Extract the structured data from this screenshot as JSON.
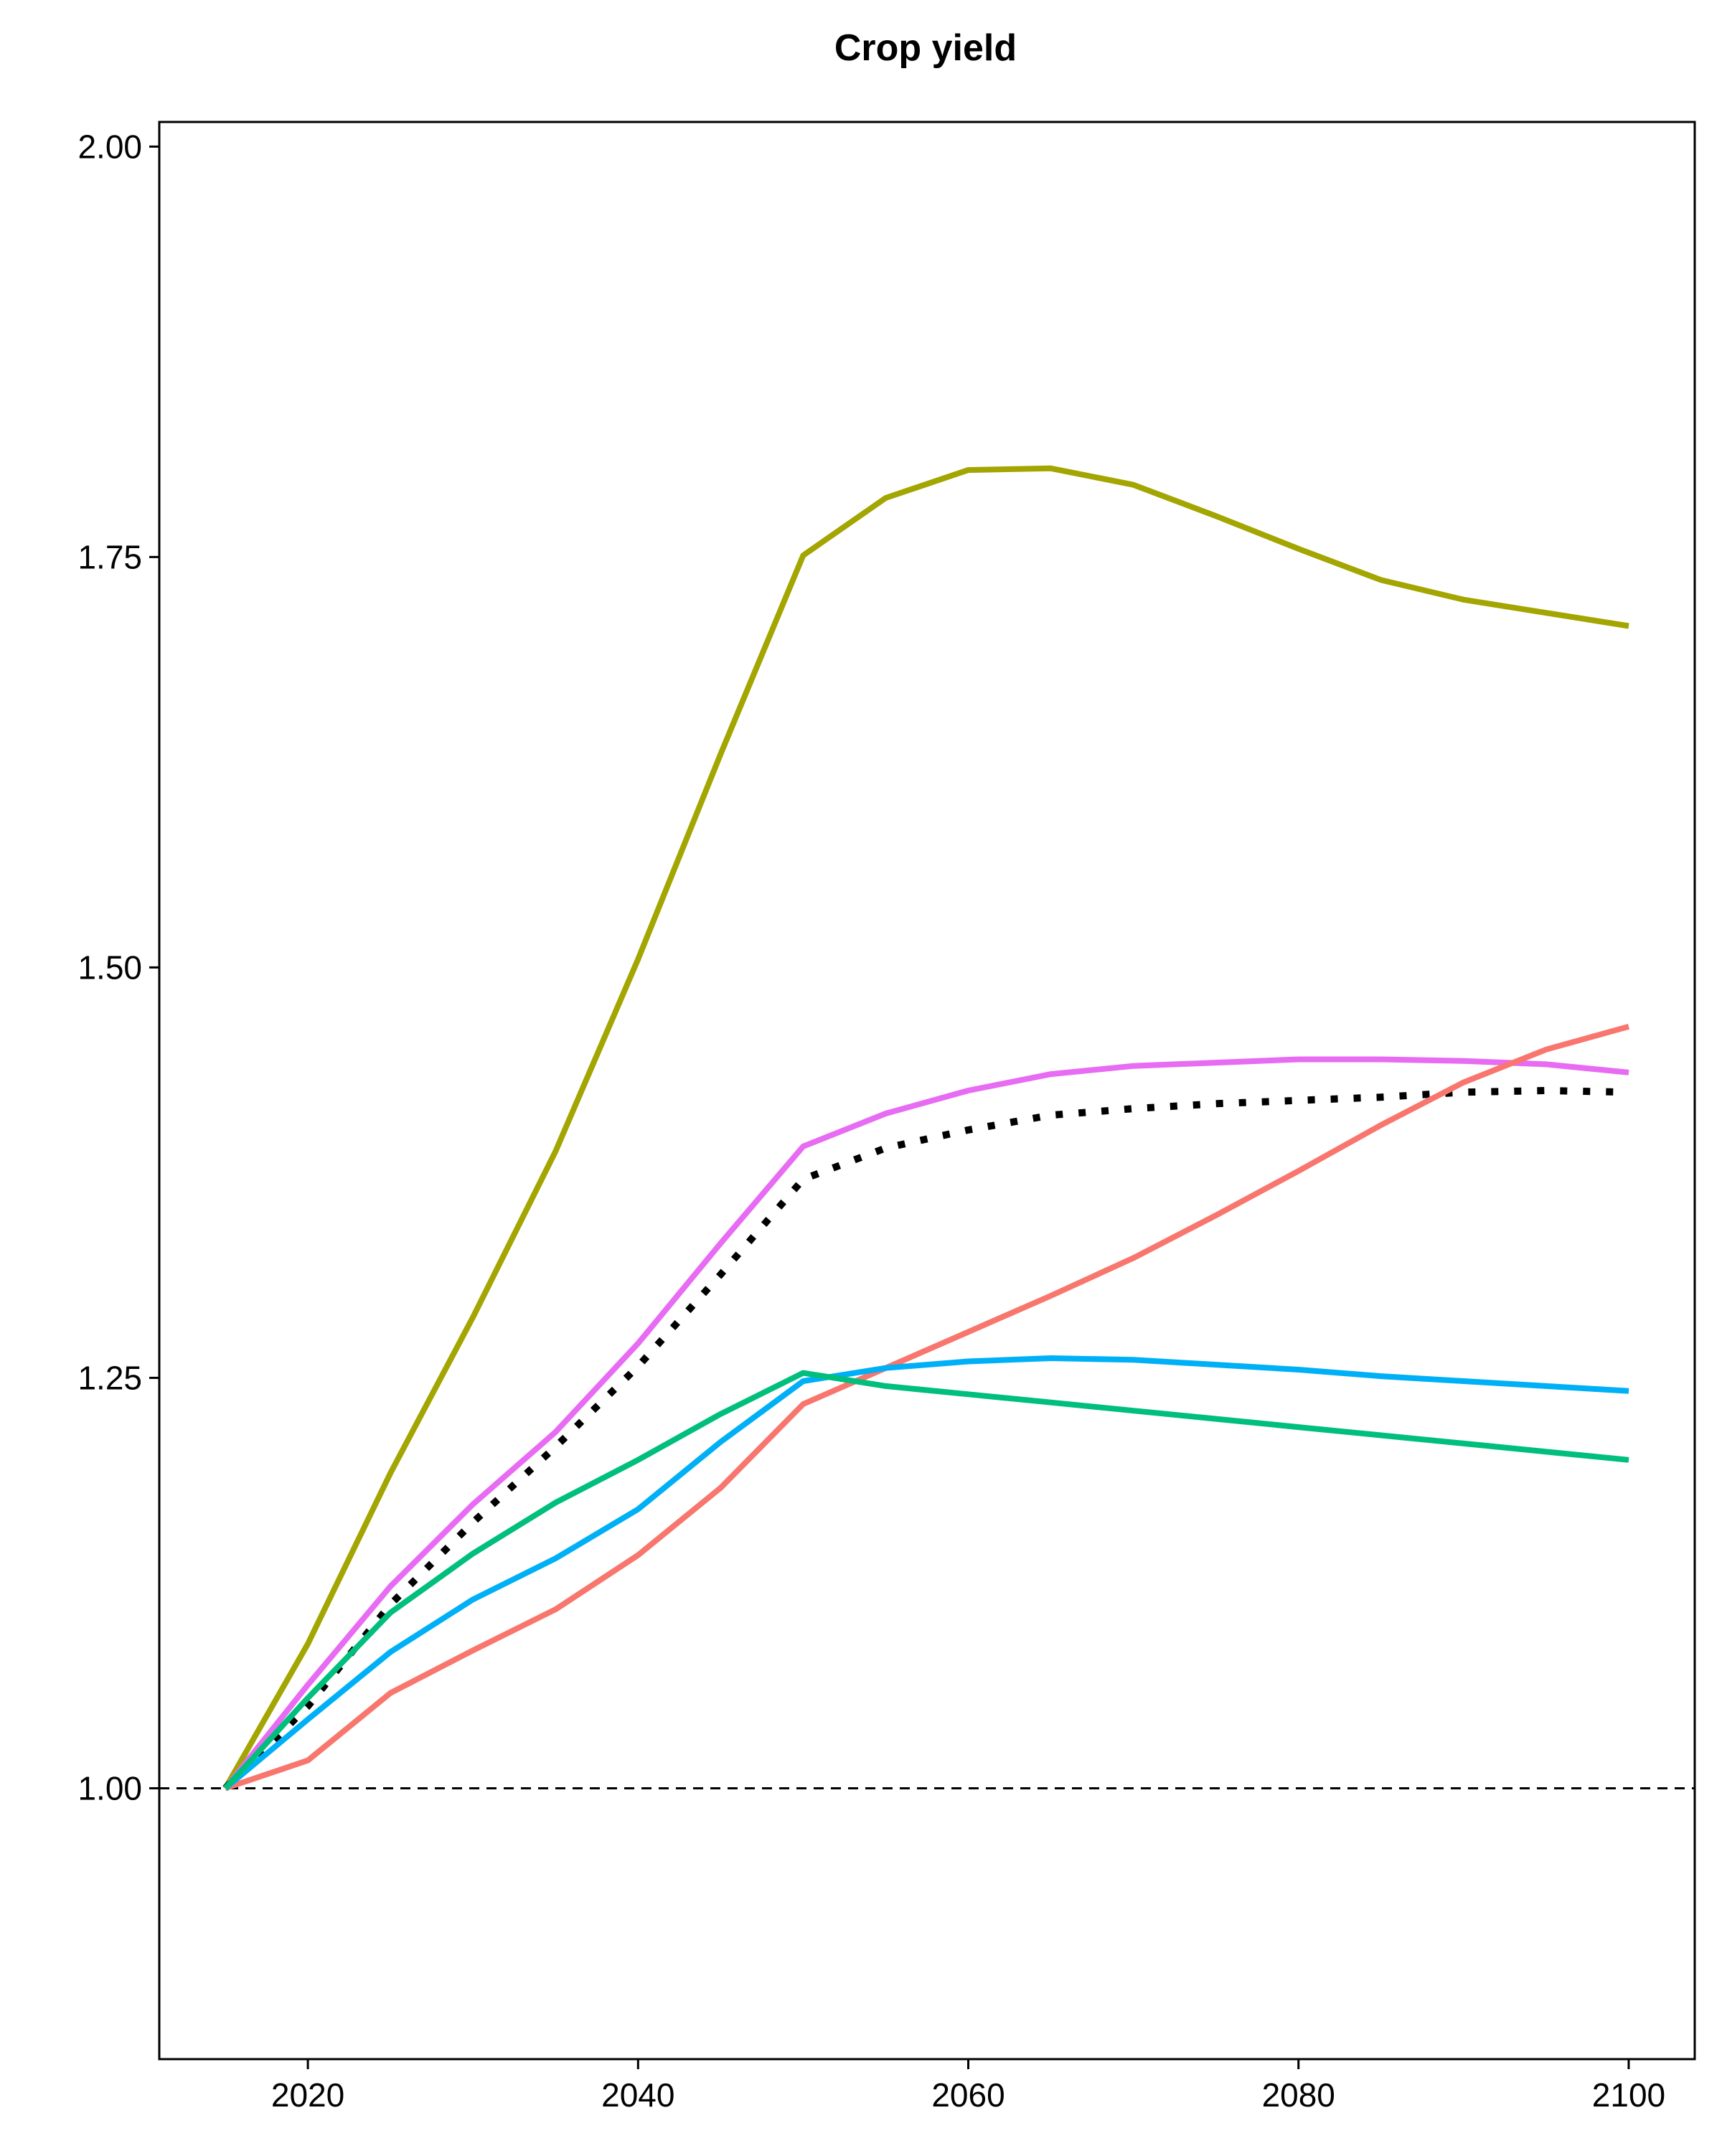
{
  "chart_data": {
    "type": "line",
    "title": "Crop yield",
    "xlabel": "",
    "ylabel": "",
    "xlim": [
      2011,
      2104
    ],
    "ylim": [
      0.835,
      2.015
    ],
    "x_ticks": [
      2020,
      2040,
      2060,
      2080,
      2100
    ],
    "x_tick_labels": [
      "2020",
      "2040",
      "2060",
      "2080",
      "2100"
    ],
    "y_ticks": [
      1.0,
      1.25,
      1.5,
      1.75,
      2.0
    ],
    "y_tick_labels": [
      "1.00",
      "1.25",
      "1.50",
      "1.75",
      "2.00"
    ],
    "grid": false,
    "legend": "none",
    "x": [
      2015,
      2020,
      2025,
      2030,
      2035,
      2040,
      2045,
      2050,
      2055,
      2060,
      2065,
      2070,
      2075,
      2080,
      2085,
      2090,
      2095,
      2100
    ],
    "reference_line": {
      "y": 1.0,
      "style": "dashed",
      "color": "#000000"
    },
    "series": [
      {
        "color": "#a3a500",
        "style": "solid",
        "values": [
          1.0,
          1.088,
          1.192,
          1.287,
          1.388,
          1.505,
          1.63,
          1.751,
          1.786,
          1.803,
          1.804,
          1.794,
          1.775,
          1.755,
          1.736,
          1.724,
          1.716,
          1.708
        ]
      },
      {
        "color": "#e76bf3",
        "style": "solid",
        "values": [
          1.0,
          1.063,
          1.123,
          1.173,
          1.217,
          1.271,
          1.332,
          1.391,
          1.411,
          1.425,
          1.435,
          1.44,
          1.442,
          1.444,
          1.444,
          1.443,
          1.441,
          1.436
        ]
      },
      {
        "color": "#000000",
        "style": "dotted",
        "values": [
          1.0,
          1.05,
          1.112,
          1.162,
          1.208,
          1.257,
          1.313,
          1.371,
          1.39,
          1.401,
          1.41,
          1.414,
          1.417,
          1.419,
          1.421,
          1.424,
          1.425,
          1.424
        ]
      },
      {
        "color": "#f8766d",
        "style": "solid",
        "values": [
          1.0,
          1.017,
          1.058,
          1.084,
          1.109,
          1.142,
          1.183,
          1.234,
          1.256,
          1.278,
          1.3,
          1.323,
          1.349,
          1.376,
          1.404,
          1.43,
          1.45,
          1.464
        ]
      },
      {
        "color": "#00b0f6",
        "style": "solid",
        "values": [
          1.0,
          1.042,
          1.083,
          1.115,
          1.14,
          1.17,
          1.211,
          1.248,
          1.256,
          1.26,
          1.262,
          1.261,
          1.258,
          1.255,
          1.251,
          1.248,
          1.245,
          1.242
        ]
      },
      {
        "color": "#00bf7d",
        "style": "solid",
        "values": [
          1.0,
          1.055,
          1.107,
          1.143,
          1.174,
          1.2,
          1.228,
          1.253,
          1.245,
          1.24,
          1.235,
          1.23,
          1.225,
          1.22,
          1.215,
          1.21,
          1.205,
          1.2
        ]
      }
    ]
  }
}
